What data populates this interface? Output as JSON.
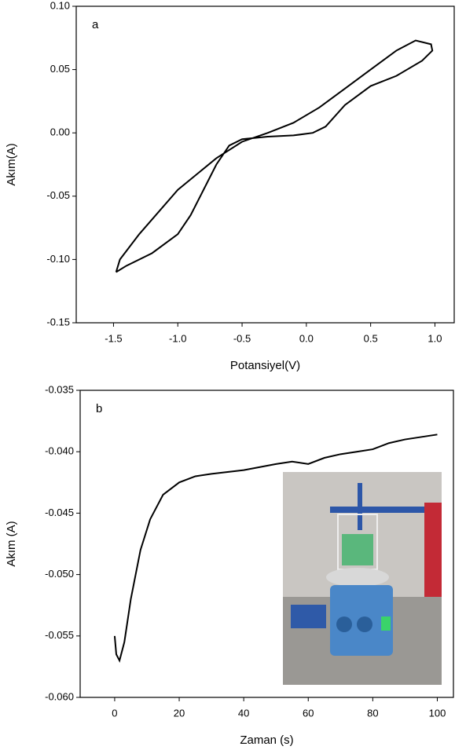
{
  "chart_data": [
    {
      "type": "line",
      "annotation": "a",
      "xlabel": "Potansiyel(V)",
      "ylabel": "Akım(A)",
      "color": "#000000",
      "x": [
        -1.48,
        -1.45,
        -1.3,
        -1.0,
        -0.7,
        -0.5,
        -0.3,
        -0.1,
        0.1,
        0.3,
        0.5,
        0.7,
        0.85,
        0.97,
        0.98,
        0.9,
        0.7,
        0.5,
        0.3,
        0.15,
        0.05,
        -0.1,
        -0.3,
        -0.5,
        -0.6,
        -0.7,
        -0.8,
        -0.9,
        -1.0,
        -1.2,
        -1.4,
        -1.48
      ],
      "values": [
        -0.11,
        -0.1,
        -0.08,
        -0.045,
        -0.02,
        -0.007,
        0.0,
        0.008,
        0.02,
        0.035,
        0.05,
        0.065,
        0.073,
        0.07,
        0.065,
        0.057,
        0.045,
        0.037,
        0.022,
        0.005,
        0.0,
        -0.002,
        -0.003,
        -0.005,
        -0.01,
        -0.025,
        -0.045,
        -0.065,
        -0.08,
        -0.095,
        -0.105,
        -0.11
      ],
      "xlim": [
        -1.79,
        1.15
      ],
      "ylim": [
        -0.15,
        0.1
      ],
      "xticks": [
        -1.5,
        {
          "value": -1.0,
          "label": "-1.0"
        },
        -0.5,
        {
          "value": 0,
          "label": "0.0"
        },
        0.5,
        {
          "value": 1.0,
          "label": "1.0"
        }
      ],
      "yticks": [
        -0.15,
        {
          "value": -0.1,
          "label": "-0.10"
        },
        -0.05,
        {
          "value": 0,
          "label": "0.00"
        },
        0.05,
        {
          "value": 0.1,
          "label": "0.10"
        }
      ]
    },
    {
      "type": "line",
      "annotation": "b",
      "xlabel": "Zaman (s)",
      "ylabel": "Akım (A)",
      "color": "#000000",
      "x": [
        0,
        0.5,
        1.5,
        3,
        5,
        8,
        11,
        15,
        20,
        25,
        30,
        40,
        50,
        55,
        60,
        65,
        70,
        75,
        80,
        85,
        90,
        95,
        100
      ],
      "values": [
        -0.055,
        -0.0565,
        -0.057,
        -0.0555,
        -0.052,
        -0.048,
        -0.0455,
        -0.0435,
        -0.0425,
        -0.042,
        -0.0418,
        -0.0415,
        -0.041,
        -0.0408,
        -0.041,
        -0.0405,
        -0.0402,
        -0.04,
        -0.0398,
        -0.0393,
        -0.039,
        -0.0388,
        -0.0386
      ],
      "xlim": [
        -10.7,
        105
      ],
      "ylim": [
        -0.06,
        -0.035
      ],
      "xticks": [
        0,
        20,
        40,
        60,
        80,
        100
      ],
      "yticks": [
        {
          "value": -0.06,
          "label": "-0.060"
        },
        -0.055,
        {
          "value": -0.05,
          "label": "-0.050"
        },
        -0.045,
        {
          "value": -0.04,
          "label": "-0.040"
        },
        -0.035
      ]
    }
  ]
}
